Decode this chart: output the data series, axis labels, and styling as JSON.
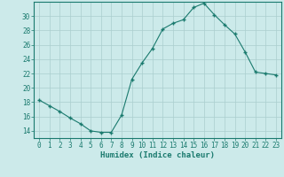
{
  "xlabel": "Humidex (Indice chaleur)",
  "x": [
    0,
    1,
    2,
    3,
    4,
    5,
    6,
    7,
    8,
    9,
    10,
    11,
    12,
    13,
    14,
    15,
    16,
    17,
    18,
    19,
    20,
    21,
    22,
    23
  ],
  "y": [
    18.3,
    17.5,
    16.7,
    15.8,
    15.0,
    14.0,
    13.8,
    13.8,
    16.2,
    21.2,
    23.5,
    25.5,
    28.2,
    29.0,
    29.5,
    31.2,
    31.8,
    30.2,
    28.8,
    27.5,
    25.0,
    22.2,
    22.0,
    21.8
  ],
  "line_color": "#1a7a6e",
  "marker": "+",
  "marker_size": 3.5,
  "marker_color": "#1a7a6e",
  "bg_color": "#cceaea",
  "grid_color": "#aacece",
  "ylim": [
    13,
    32
  ],
  "yticks": [
    14,
    16,
    18,
    20,
    22,
    24,
    26,
    28,
    30
  ],
  "xlim": [
    -0.5,
    23.5
  ],
  "xticks": [
    0,
    1,
    2,
    3,
    4,
    5,
    6,
    7,
    8,
    9,
    10,
    11,
    12,
    13,
    14,
    15,
    16,
    17,
    18,
    19,
    20,
    21,
    22,
    23
  ],
  "tick_color": "#1a7a6e",
  "label_color": "#1a7a6e",
  "axis_color": "#1a7a6e",
  "xlabel_fontsize": 6.5,
  "tick_fontsize": 5.5,
  "linewidth": 0.8
}
